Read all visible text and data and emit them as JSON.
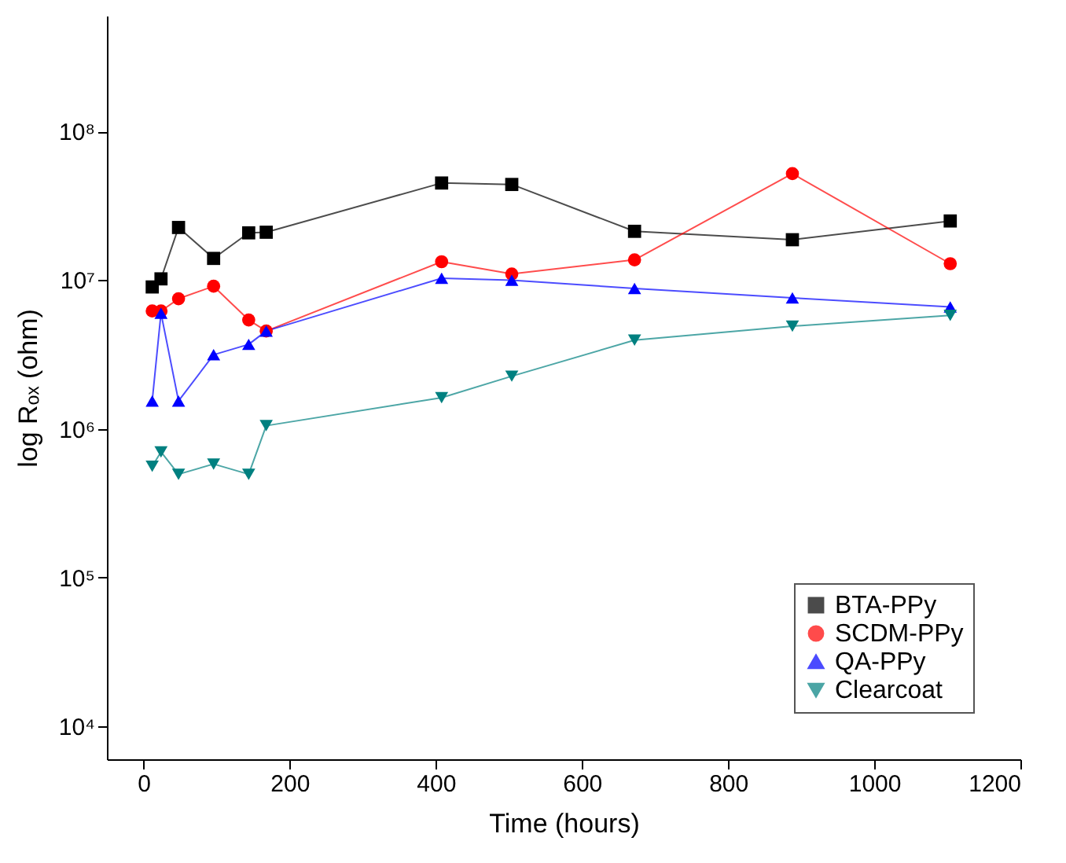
{
  "chart_data": {
    "type": "line",
    "xlabel": "Time (hours)",
    "ylabel": "log Rₒₓ (ohm)",
    "x": [
      12,
      24,
      48,
      96,
      144,
      168,
      408,
      504,
      672,
      888,
      1104
    ],
    "series": [
      {
        "name": "BTA-PPy",
        "color": "#000000",
        "marker": "square",
        "values": [
          9000000.0,
          10200000.0,
          22600000.0,
          14000000.0,
          20800000.0,
          21000000.0,
          45000000.0,
          44000000.0,
          21300000.0,
          18700000.0,
          25000000.0
        ]
      },
      {
        "name": "SCDM-PPy",
        "color": "#ff0000",
        "marker": "circle",
        "values": [
          6200000.0,
          6200000.0,
          7500000.0,
          9100000.0,
          5400000.0,
          4550000.0,
          13300000.0,
          11000000.0,
          13700000.0,
          52000000.0,
          12900000.0
        ]
      },
      {
        "name": "QA-PPy",
        "color": "#0000ff",
        "marker": "triangle",
        "values": [
          1540000.0,
          6000000.0,
          1540000.0,
          3150000.0,
          3700000.0,
          4550000.0,
          10300000.0,
          10000000.0,
          8800000.0,
          7600000.0,
          6600000.0
        ]
      },
      {
        "name": "Clearcoat",
        "color": "#008080",
        "marker": "triangle-down",
        "values": [
          560000.0,
          700000.0,
          495000.0,
          580000.0,
          495000.0,
          1050000.0,
          1620000.0,
          2260000.0,
          3950000.0,
          4900000.0,
          5800000.0
        ]
      }
    ],
    "xlim": [
      -50,
      1200
    ],
    "xticks": [
      0,
      200,
      400,
      600,
      800,
      1000,
      1200
    ],
    "ylim": [
      6000,
      600000000
    ],
    "log": true,
    "yticks": [
      {
        "value": 10000,
        "label": "10⁴"
      },
      {
        "value": 100000,
        "label": "10⁵"
      },
      {
        "value": 1000000,
        "label": "10⁶"
      },
      {
        "value": 10000000,
        "label": "10⁷"
      },
      {
        "value": 100000000,
        "label": "10⁸"
      }
    ],
    "grid": false,
    "legend": "bottom right",
    "line_style": "solid"
  }
}
